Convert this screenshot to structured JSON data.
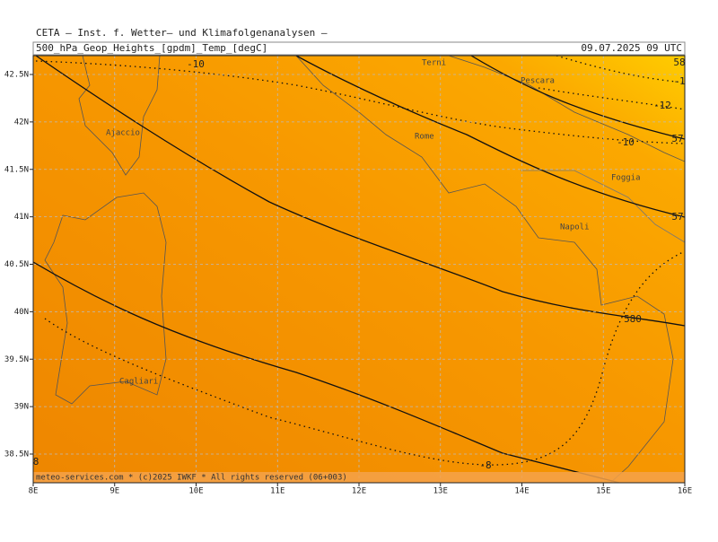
{
  "header": {
    "source": "CETA — Inst. f. Wetter— und Klimafolgenanalysen —",
    "title": "500_hPa_Geop_Heights_[gpdm]_Temp_[degC]",
    "valid_time": "09.07.2025 09 UTC"
  },
  "map": {
    "lat_ticks": [
      {
        "value": 42.5,
        "label": "42.5N"
      },
      {
        "value": 42,
        "label": "42N"
      },
      {
        "value": 41.5,
        "label": "41.5N"
      },
      {
        "value": 41,
        "label": "41N"
      },
      {
        "value": 40.5,
        "label": "40.5N"
      },
      {
        "value": 40,
        "label": "40N"
      },
      {
        "value": 39.5,
        "label": "39.5N"
      },
      {
        "value": 39,
        "label": "39N"
      },
      {
        "value": 38.5,
        "label": "38.5N"
      }
    ],
    "lon_ticks": [
      {
        "value": 8,
        "label": "8E"
      },
      {
        "value": 9,
        "label": "9E"
      },
      {
        "value": 10,
        "label": "10E"
      },
      {
        "value": 11,
        "label": "11E"
      },
      {
        "value": 12,
        "label": "12E"
      },
      {
        "value": 13,
        "label": "13E"
      },
      {
        "value": 14,
        "label": "14E"
      },
      {
        "value": 15,
        "label": "15E"
      },
      {
        "value": 16,
        "label": "16E"
      }
    ],
    "places": [
      "Terni",
      "Pescara",
      "Rome",
      "Ajaccio",
      "Foggia",
      "Napoli",
      "Cagliari"
    ],
    "contour_labels": [
      "-10",
      "-10",
      "-12",
      "-1",
      "58",
      "57",
      "57",
      "580",
      "-8",
      "8"
    ]
  },
  "footer": "meteo-services.com * (c)2025 IWKF * All rights reserved (06+003)"
}
